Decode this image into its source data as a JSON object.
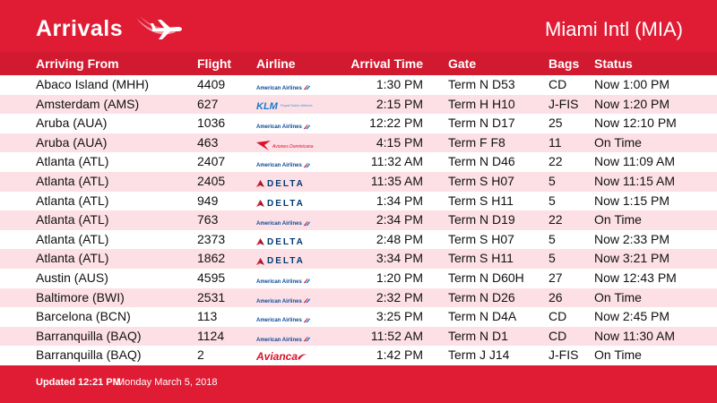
{
  "header": {
    "title": "Arrivals",
    "airport": "Miami Intl (MIA)",
    "plane_icon": "airplane-icon",
    "color": "#e01b34"
  },
  "columns": {
    "from": "Arriving From",
    "flight": "Flight",
    "airline": "Airline",
    "time": "Arrival Time",
    "gate": "Gate",
    "bags": "Bags",
    "status": "Status"
  },
  "airlines": {
    "aa": "American Airlines",
    "dl": "DELTA",
    "klm": "KLM",
    "klm_tag": "Royal Dutch Airlines",
    "av": "Avianca",
    "aw": "Aviones Dominicana"
  },
  "rows": [
    {
      "from": "Abaco Island (MHH)",
      "flight": "4409",
      "airline": "aa",
      "time": "1:30 PM",
      "gate": "Term N D53",
      "bags": "CD",
      "status": "Now 1:00 PM"
    },
    {
      "from": "Amsterdam (AMS)",
      "flight": "627",
      "airline": "klm",
      "time": "2:15 PM",
      "gate": "Term H H10",
      "bags": "J-FIS",
      "status": "Now 1:20 PM"
    },
    {
      "from": "Aruba (AUA)",
      "flight": "1036",
      "airline": "aa",
      "time": "12:22 PM",
      "gate": "Term N D17",
      "bags": "25",
      "status": "Now 12:10 PM"
    },
    {
      "from": "Aruba (AUA)",
      "flight": "463",
      "airline": "aw",
      "time": "4:15 PM",
      "gate": "Term F F8",
      "bags": "11",
      "status": "On Time"
    },
    {
      "from": "Atlanta (ATL)",
      "flight": "2407",
      "airline": "aa",
      "time": "11:32 AM",
      "gate": "Term N D46",
      "bags": "22",
      "status": "Now 11:09 AM"
    },
    {
      "from": "Atlanta (ATL)",
      "flight": "2405",
      "airline": "dl",
      "time": "11:35 AM",
      "gate": "Term S H07",
      "bags": "5",
      "status": "Now 11:15 AM"
    },
    {
      "from": "Atlanta (ATL)",
      "flight": "949",
      "airline": "dl",
      "time": "1:34 PM",
      "gate": "Term S H11",
      "bags": "5",
      "status": "Now 1:15 PM"
    },
    {
      "from": "Atlanta (ATL)",
      "flight": "763",
      "airline": "aa",
      "time": "2:34 PM",
      "gate": "Term N D19",
      "bags": "22",
      "status": "On Time"
    },
    {
      "from": "Atlanta (ATL)",
      "flight": "2373",
      "airline": "dl",
      "time": "2:48 PM",
      "gate": "Term S H07",
      "bags": "5",
      "status": "Now 2:33 PM"
    },
    {
      "from": "Atlanta (ATL)",
      "flight": "1862",
      "airline": "dl",
      "time": "3:34 PM",
      "gate": "Term S H11",
      "bags": "5",
      "status": "Now 3:21 PM"
    },
    {
      "from": "Austin (AUS)",
      "flight": "4595",
      "airline": "aa",
      "time": "1:20 PM",
      "gate": "Term N D60H",
      "bags": "27",
      "status": "Now 12:43 PM"
    },
    {
      "from": "Baltimore (BWI)",
      "flight": "2531",
      "airline": "aa",
      "time": "2:32 PM",
      "gate": "Term N D26",
      "bags": "26",
      "status": "On Time"
    },
    {
      "from": "Barcelona (BCN)",
      "flight": "113",
      "airline": "aa",
      "time": "3:25 PM",
      "gate": "Term N D4A",
      "bags": "CD",
      "status": "Now 2:45 PM"
    },
    {
      "from": "Barranquilla (BAQ)",
      "flight": "1124",
      "airline": "aa",
      "time": "11:52 AM",
      "gate": "Term N D1",
      "bags": "CD",
      "status": "Now 11:30 AM"
    },
    {
      "from": "Barranquilla (BAQ)",
      "flight": "2",
      "airline": "av",
      "time": "1:42 PM",
      "gate": "Term J J14",
      "bags": "J-FIS",
      "status": "On Time"
    }
  ],
  "footer": {
    "updated": "Updated 12:21 PM",
    "date": "Monday March 5, 2018"
  }
}
